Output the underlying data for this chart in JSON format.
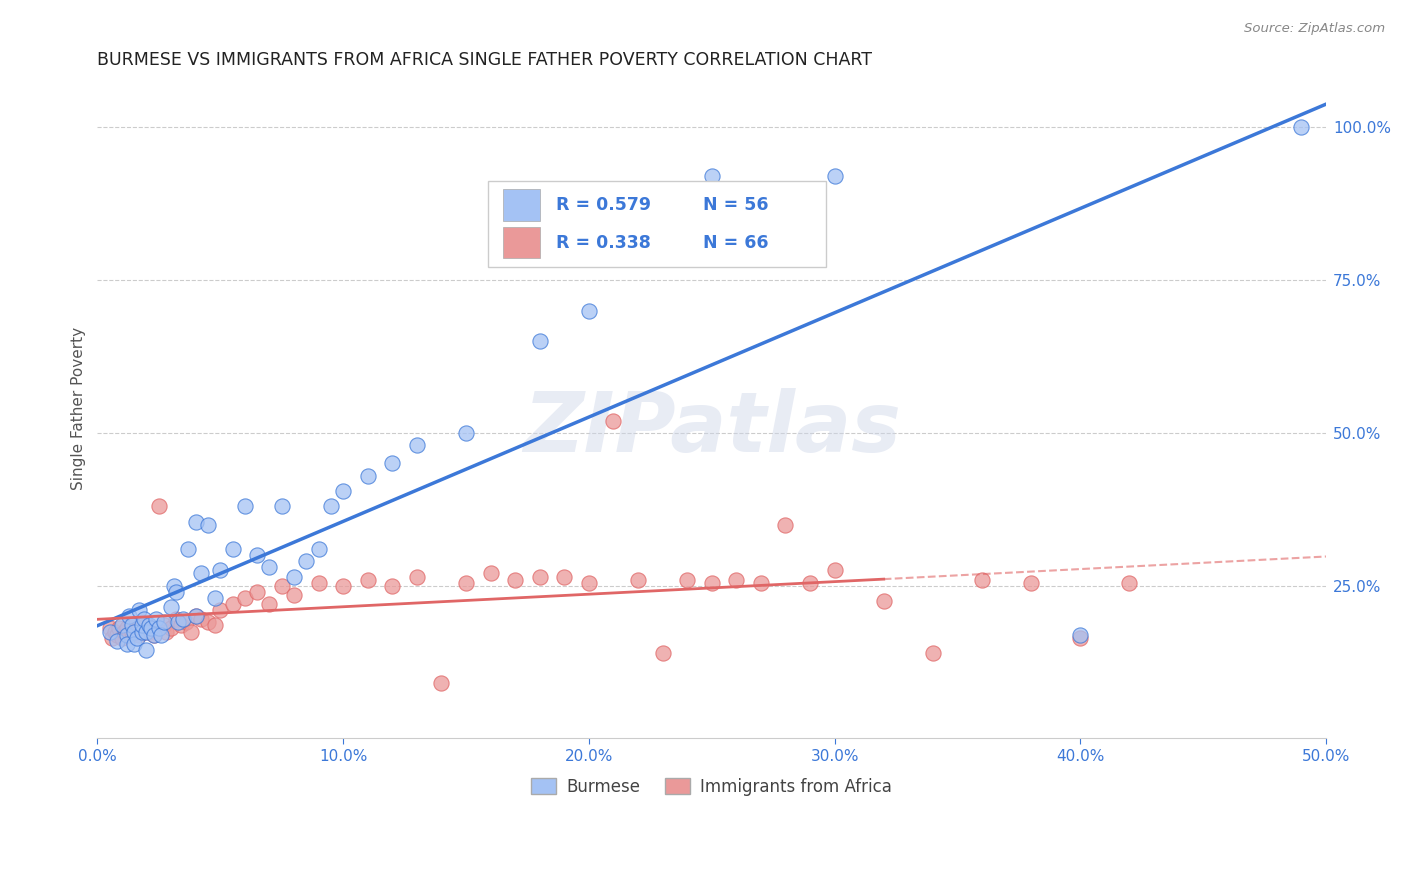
{
  "title": "BURMESE VS IMMIGRANTS FROM AFRICA SINGLE FATHER POVERTY CORRELATION CHART",
  "source": "Source: ZipAtlas.com",
  "ylabel": "Single Father Poverty",
  "xlim": [
    0.0,
    0.5
  ],
  "ylim": [
    0.0,
    1.08
  ],
  "xtick_labels": [
    "0.0%",
    "10.0%",
    "20.0%",
    "30.0%",
    "40.0%",
    "50.0%"
  ],
  "xtick_vals": [
    0.0,
    0.1,
    0.2,
    0.3,
    0.4,
    0.5
  ],
  "ytick_labels": [
    "25.0%",
    "50.0%",
    "75.0%",
    "100.0%"
  ],
  "ytick_vals": [
    0.25,
    0.5,
    0.75,
    1.0
  ],
  "legend_labels_bottom": [
    "Burmese",
    "Immigrants from Africa"
  ],
  "legend_R_blue": "0.579",
  "legend_N_blue": "56",
  "legend_R_pink": "0.338",
  "legend_N_pink": "66",
  "color_blue": "#a4c2f4",
  "color_pink": "#ea9999",
  "color_blue_dark": "#3c78d8",
  "color_pink_dark": "#e06666",
  "color_text_blue": "#3c78d8",
  "watermark_text": "ZIPatlas",
  "background_color": "#ffffff",
  "blue_scatter_x": [
    0.005,
    0.008,
    0.01,
    0.012,
    0.012,
    0.013,
    0.014,
    0.015,
    0.015,
    0.016,
    0.017,
    0.018,
    0.018,
    0.019,
    0.02,
    0.02,
    0.021,
    0.022,
    0.023,
    0.024,
    0.025,
    0.026,
    0.027,
    0.03,
    0.031,
    0.032,
    0.033,
    0.035,
    0.037,
    0.04,
    0.04,
    0.042,
    0.045,
    0.048,
    0.05,
    0.055,
    0.06,
    0.065,
    0.07,
    0.075,
    0.08,
    0.085,
    0.09,
    0.095,
    0.1,
    0.11,
    0.12,
    0.13,
    0.15,
    0.18,
    0.2,
    0.22,
    0.25,
    0.3,
    0.4,
    0.49
  ],
  "blue_scatter_y": [
    0.175,
    0.16,
    0.185,
    0.17,
    0.155,
    0.2,
    0.185,
    0.175,
    0.155,
    0.165,
    0.21,
    0.175,
    0.185,
    0.195,
    0.175,
    0.145,
    0.185,
    0.18,
    0.17,
    0.195,
    0.18,
    0.17,
    0.19,
    0.215,
    0.25,
    0.24,
    0.19,
    0.195,
    0.31,
    0.355,
    0.2,
    0.27,
    0.35,
    0.23,
    0.275,
    0.31,
    0.38,
    0.3,
    0.28,
    0.38,
    0.265,
    0.29,
    0.31,
    0.38,
    0.405,
    0.43,
    0.45,
    0.48,
    0.5,
    0.65,
    0.7,
    0.8,
    0.92,
    0.92,
    0.17,
    1.0
  ],
  "pink_scatter_x": [
    0.005,
    0.006,
    0.007,
    0.008,
    0.009,
    0.01,
    0.011,
    0.012,
    0.013,
    0.014,
    0.015,
    0.016,
    0.017,
    0.018,
    0.019,
    0.02,
    0.021,
    0.022,
    0.023,
    0.025,
    0.027,
    0.028,
    0.03,
    0.032,
    0.034,
    0.036,
    0.038,
    0.04,
    0.042,
    0.045,
    0.048,
    0.05,
    0.055,
    0.06,
    0.065,
    0.07,
    0.075,
    0.08,
    0.09,
    0.1,
    0.11,
    0.12,
    0.13,
    0.14,
    0.15,
    0.16,
    0.17,
    0.18,
    0.19,
    0.2,
    0.21,
    0.22,
    0.23,
    0.24,
    0.25,
    0.26,
    0.27,
    0.28,
    0.29,
    0.3,
    0.32,
    0.34,
    0.36,
    0.38,
    0.4,
    0.42
  ],
  "pink_scatter_y": [
    0.18,
    0.165,
    0.175,
    0.17,
    0.18,
    0.165,
    0.175,
    0.18,
    0.17,
    0.175,
    0.185,
    0.175,
    0.17,
    0.18,
    0.175,
    0.185,
    0.175,
    0.18,
    0.17,
    0.38,
    0.185,
    0.175,
    0.18,
    0.195,
    0.185,
    0.19,
    0.175,
    0.2,
    0.195,
    0.19,
    0.185,
    0.21,
    0.22,
    0.23,
    0.24,
    0.22,
    0.25,
    0.235,
    0.255,
    0.25,
    0.26,
    0.25,
    0.265,
    0.09,
    0.255,
    0.27,
    0.26,
    0.265,
    0.265,
    0.255,
    0.52,
    0.26,
    0.14,
    0.26,
    0.255,
    0.26,
    0.255,
    0.35,
    0.255,
    0.275,
    0.225,
    0.14,
    0.26,
    0.255,
    0.165,
    0.255
  ]
}
